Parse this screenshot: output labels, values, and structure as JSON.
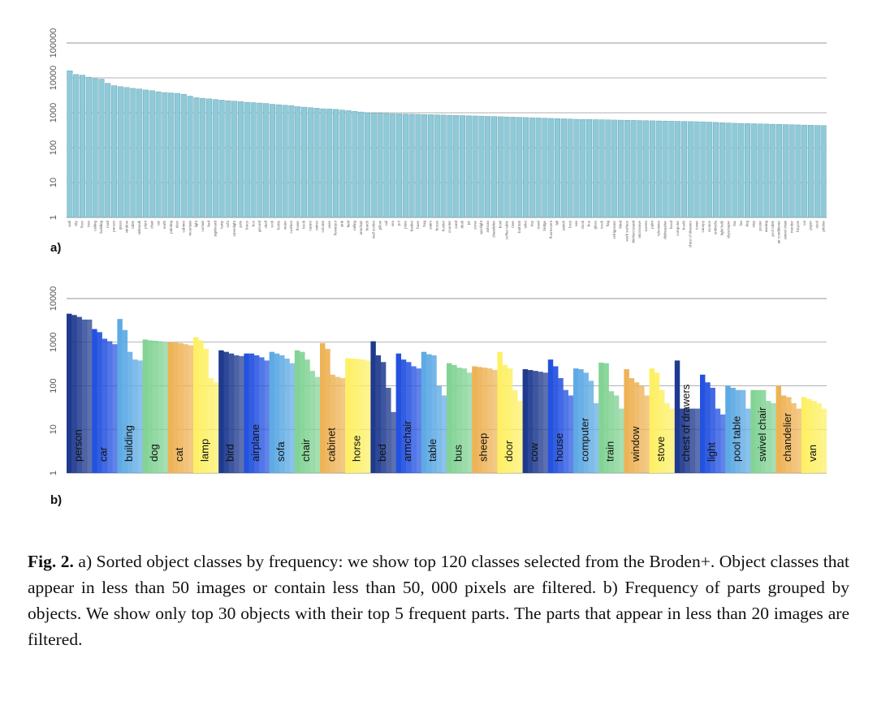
{
  "chart_data": [
    {
      "type": "bar",
      "log_scale": true,
      "grid": true,
      "color": "#8fcad8",
      "panel_label": "a)",
      "ylim": [
        1,
        100000
      ],
      "yticks": [
        1,
        10,
        100,
        1000,
        10000,
        100000
      ],
      "categories": [
        "wall",
        "sky",
        "floor",
        "tree",
        "ceiling",
        "building",
        "road",
        "person",
        "grass",
        "window",
        "table",
        "sidewalk",
        "plant",
        "chair",
        "car",
        "earth",
        "painting",
        "door",
        "cabinet",
        "mountain",
        "light",
        "curtain",
        "bed",
        "signboard",
        "lamp",
        "sofa",
        "streetlight",
        "pole",
        "fence",
        "box",
        "ground",
        "shelf",
        "rock",
        "bottle",
        "water",
        "cushion",
        "flower",
        "book",
        "carpet",
        "mirror",
        "column",
        "vase",
        "flowerpot",
        "sink",
        "field",
        "railing",
        "armchair",
        "bench",
        "wall socket",
        "pillow",
        "rail",
        "sea",
        "pot",
        "plate",
        "basket",
        "base",
        "bag",
        "stairs",
        "house",
        "bucket",
        "counter",
        "sand",
        "desk",
        "jar",
        "stove",
        "spotlight",
        "ashcan",
        "chandelier",
        "bowl",
        "coffee table",
        "river",
        "bathtub",
        "toilet",
        "tray",
        "towel",
        "bridge",
        "fluorescent",
        "hill",
        "switch",
        "boat",
        "van",
        "clock",
        "bus",
        "glass",
        "truck",
        "flag",
        "refrigerator",
        "blind",
        "work surface",
        "kitchen island",
        "microwave",
        "screen",
        "palm",
        "television",
        "dishwasher",
        "hood",
        "computer",
        "booth",
        "chest of drawers",
        "tower",
        "canopy",
        "sconce",
        "umbrella",
        "light bulb",
        "skyscraper",
        "bar",
        "fan",
        "dog",
        "step",
        "poster",
        "awning",
        "pool table",
        "air conditioner",
        "swivel chair",
        "monitor",
        "bicycle",
        "cat",
        "paper",
        "stool",
        "pitcher"
      ],
      "values": [
        16000,
        12500,
        12000,
        10500,
        9500,
        9200,
        7000,
        6000,
        5600,
        5300,
        5000,
        4800,
        4500,
        4300,
        4000,
        3800,
        3700,
        3600,
        3400,
        3000,
        2700,
        2600,
        2500,
        2400,
        2300,
        2200,
        2150,
        2100,
        2000,
        1950,
        1900,
        1850,
        1750,
        1700,
        1650,
        1600,
        1500,
        1450,
        1400,
        1350,
        1300,
        1280,
        1250,
        1200,
        1150,
        1100,
        1050,
        1000,
        980,
        960,
        950,
        940,
        930,
        920,
        910,
        900,
        890,
        880,
        870,
        860,
        850,
        840,
        830,
        820,
        810,
        800,
        790,
        780,
        770,
        760,
        750,
        740,
        730,
        720,
        710,
        700,
        690,
        680,
        670,
        660,
        650,
        645,
        640,
        635,
        630,
        625,
        620,
        615,
        610,
        605,
        600,
        595,
        590,
        585,
        580,
        575,
        570,
        565,
        560,
        555,
        550,
        540,
        530,
        520,
        510,
        500,
        495,
        490,
        485,
        480,
        475,
        470,
        465,
        460,
        455,
        450,
        445,
        440,
        435,
        430
      ]
    },
    {
      "type": "grouped_bar",
      "log_scale": true,
      "grid": true,
      "panel_label": "b)",
      "ylim": [
        1,
        10000
      ],
      "yticks": [
        1,
        10,
        100,
        1000,
        10000
      ],
      "series": [
        {
          "name": "person",
          "color": "#1e3a8f",
          "values": [
            4500,
            4200,
            3800,
            3300,
            3300
          ]
        },
        {
          "name": "car",
          "color": "#2452e0",
          "values": [
            2000,
            1700,
            1200,
            1050,
            900
          ]
        },
        {
          "name": "building",
          "color": "#5eaae4",
          "values": [
            3400,
            1900,
            600,
            400,
            380
          ]
        },
        {
          "name": "dog",
          "color": "#82d394",
          "values": [
            1150,
            1100,
            1080,
            1050,
            1000
          ]
        },
        {
          "name": "cat",
          "color": "#eeb356",
          "values": [
            1000,
            980,
            950,
            900,
            850
          ]
        },
        {
          "name": "lamp",
          "color": "#fdf064",
          "values": [
            1300,
            1100,
            700,
            150,
            120
          ]
        },
        {
          "name": "bird",
          "color": "#1e3a8f",
          "values": [
            650,
            600,
            550,
            500,
            480
          ]
        },
        {
          "name": "airplane",
          "color": "#2452e0",
          "values": [
            550,
            550,
            500,
            450,
            380
          ]
        },
        {
          "name": "sofa",
          "color": "#5eaae4",
          "values": [
            600,
            550,
            500,
            420,
            330
          ]
        },
        {
          "name": "chair",
          "color": "#82d394",
          "values": [
            650,
            600,
            400,
            220,
            160
          ]
        },
        {
          "name": "cabinet",
          "color": "#eeb356",
          "values": [
            950,
            700,
            180,
            160,
            150
          ]
        },
        {
          "name": "horse",
          "color": "#fdf064",
          "values": [
            430,
            420,
            410,
            400,
            380
          ]
        },
        {
          "name": "bed",
          "color": "#1e3a8f",
          "values": [
            1050,
            500,
            350,
            90,
            25
          ]
        },
        {
          "name": "armchair",
          "color": "#2452e0",
          "values": [
            550,
            400,
            350,
            280,
            250
          ]
        },
        {
          "name": "table",
          "color": "#5eaae4",
          "values": [
            600,
            530,
            500,
            100,
            60
          ]
        },
        {
          "name": "bus",
          "color": "#82d394",
          "values": [
            330,
            300,
            260,
            250,
            200
          ]
        },
        {
          "name": "sheep",
          "color": "#eeb356",
          "values": [
            280,
            270,
            260,
            250,
            230
          ]
        },
        {
          "name": "door",
          "color": "#fdf064",
          "values": [
            600,
            300,
            250,
            80,
            45
          ]
        },
        {
          "name": "cow",
          "color": "#1e3a8f",
          "values": [
            240,
            230,
            220,
            210,
            200
          ]
        },
        {
          "name": "house",
          "color": "#2452e0",
          "values": [
            400,
            280,
            150,
            80,
            60
          ]
        },
        {
          "name": "computer",
          "color": "#5eaae4",
          "values": [
            250,
            240,
            200,
            130,
            40
          ]
        },
        {
          "name": "train",
          "color": "#82d394",
          "values": [
            340,
            330,
            75,
            60,
            30
          ]
        },
        {
          "name": "window",
          "color": "#eeb356",
          "values": [
            240,
            150,
            120,
            100,
            60
          ]
        },
        {
          "name": "stove",
          "color": "#fdf064",
          "values": [
            250,
            200,
            80,
            40,
            30
          ]
        },
        {
          "name": "chest of drawers",
          "color": "#1e3a8f",
          "values": [
            380,
            30,
            30,
            30,
            30
          ]
        },
        {
          "name": "light",
          "color": "#2452e0",
          "values": [
            180,
            120,
            90,
            30,
            22
          ]
        },
        {
          "name": "pool table",
          "color": "#5eaae4",
          "values": [
            100,
            90,
            80,
            80,
            30
          ]
        },
        {
          "name": "swivel chair",
          "color": "#82d394",
          "values": [
            80,
            80,
            80,
            45,
            40
          ]
        },
        {
          "name": "chandelier",
          "color": "#eeb356",
          "values": [
            100,
            60,
            55,
            40,
            30
          ]
        },
        {
          "name": "van",
          "color": "#fdf064",
          "values": [
            55,
            50,
            45,
            40,
            30
          ]
        }
      ]
    }
  ],
  "caption": {
    "label": "Fig. 2.",
    "text": "a) Sorted object classes by frequency: we show top 120 classes selected from the Broden+. Object classes that appear in less than 50 images or contain less than 50, 000 pixels are filtered. b) Frequency of parts grouped by objects. We show only top 30 objects with their top 5 frequent parts. The parts that appear in less than 20 images are filtered."
  }
}
